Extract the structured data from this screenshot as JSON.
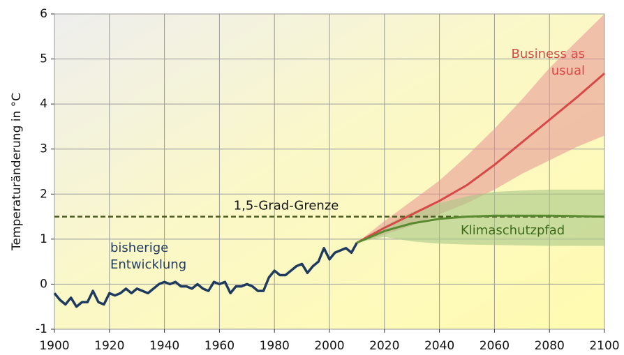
{
  "chart_data": {
    "type": "line",
    "ylabel": "Temperaturänderung in °C",
    "xlim": [
      1900,
      2100
    ],
    "xticks": [
      1900,
      1920,
      1940,
      1960,
      1980,
      2000,
      2020,
      2040,
      2060,
      2080,
      2100
    ],
    "ylim": [
      -1,
      6
    ],
    "yticks": [
      -1,
      0,
      1,
      2,
      3,
      4,
      5,
      6
    ],
    "grid": true,
    "series": [
      {
        "name": "bisherige Entwicklung",
        "color": "#1f3a5f",
        "x": [
          1900,
          1902,
          1904,
          1906,
          1908,
          1910,
          1912,
          1914,
          1916,
          1918,
          1920,
          1922,
          1924,
          1926,
          1928,
          1930,
          1932,
          1934,
          1936,
          1938,
          1940,
          1942,
          1944,
          1946,
          1948,
          1950,
          1952,
          1954,
          1956,
          1958,
          1960,
          1962,
          1964,
          1966,
          1968,
          1970,
          1972,
          1974,
          1976,
          1978,
          1980,
          1982,
          1984,
          1986,
          1988,
          1990,
          1992,
          1994,
          1996,
          1998,
          2000,
          2002,
          2004,
          2006,
          2008,
          2010
        ],
        "values": [
          -0.2,
          -0.35,
          -0.45,
          -0.3,
          -0.5,
          -0.4,
          -0.4,
          -0.15,
          -0.4,
          -0.45,
          -0.2,
          -0.25,
          -0.2,
          -0.1,
          -0.2,
          -0.1,
          -0.15,
          -0.2,
          -0.1,
          0.0,
          0.05,
          0.0,
          0.05,
          -0.05,
          -0.05,
          -0.1,
          0.0,
          -0.1,
          -0.15,
          0.05,
          0.0,
          0.05,
          -0.2,
          -0.05,
          -0.05,
          0.0,
          -0.05,
          -0.15,
          -0.15,
          0.15,
          0.3,
          0.2,
          0.2,
          0.3,
          0.4,
          0.45,
          0.25,
          0.4,
          0.5,
          0.8,
          0.55,
          0.7,
          0.75,
          0.8,
          0.7,
          0.92
        ]
      },
      {
        "name": "Business as usual",
        "color": "#d94848",
        "band_color": "#e79a96",
        "x": [
          2010,
          2020,
          2030,
          2040,
          2050,
          2060,
          2070,
          2080,
          2090,
          2100
        ],
        "values": [
          0.92,
          1.25,
          1.55,
          1.85,
          2.2,
          2.65,
          3.15,
          3.65,
          4.15,
          4.68
        ],
        "lower": [
          0.92,
          1.1,
          1.3,
          1.55,
          1.8,
          2.1,
          2.45,
          2.75,
          3.05,
          3.3
        ],
        "upper": [
          0.92,
          1.4,
          1.85,
          2.3,
          2.85,
          3.45,
          4.1,
          4.8,
          5.4,
          6.0
        ]
      },
      {
        "name": "Klimaschutzpfad",
        "color": "#5a8a30",
        "band_color": "#a9c887",
        "x": [
          2010,
          2020,
          2030,
          2040,
          2050,
          2060,
          2070,
          2080,
          2090,
          2100
        ],
        "values": [
          0.92,
          1.18,
          1.35,
          1.45,
          1.5,
          1.52,
          1.52,
          1.52,
          1.51,
          1.5
        ],
        "lower": [
          0.92,
          1.05,
          0.95,
          0.9,
          0.88,
          0.87,
          0.86,
          0.85,
          0.85,
          0.85
        ],
        "upper": [
          0.92,
          1.3,
          1.6,
          1.8,
          1.95,
          2.05,
          2.08,
          2.1,
          2.1,
          2.1
        ]
      }
    ],
    "reference_lines": [
      {
        "value": 1.5,
        "label": "1,5-Grad-Grenze",
        "color": "#4a5a20",
        "style": "dashed"
      }
    ]
  }
}
